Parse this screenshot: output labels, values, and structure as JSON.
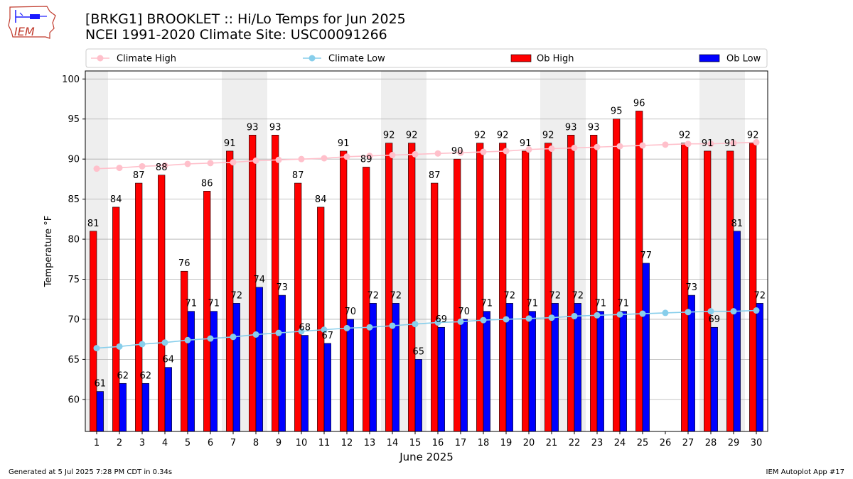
{
  "header": {
    "title_line1": "[BRKG1] BROOKLET :: Hi/Lo Temps for Jun 2025",
    "title_line2": "NCEI 1991-2020 Climate Site: USC00091266"
  },
  "logo": {
    "text": "IEM"
  },
  "footer": {
    "generated": "Generated at 5 Jul 2025 7:28 PM CDT in 0.34s",
    "app": "IEM Autoplot App #17"
  },
  "chart_data": {
    "type": "bar",
    "xlabel": "June 2025",
    "ylabel": "Temperature °F",
    "ylim": [
      56,
      101
    ],
    "yticks": [
      60,
      65,
      70,
      75,
      80,
      85,
      90,
      95,
      100
    ],
    "grid": true,
    "legend_position": "top",
    "categories": [
      1,
      2,
      3,
      4,
      5,
      6,
      7,
      8,
      9,
      10,
      11,
      12,
      13,
      14,
      15,
      16,
      17,
      18,
      19,
      20,
      21,
      22,
      23,
      24,
      25,
      26,
      27,
      28,
      29,
      30
    ],
    "weekend_shaded_days": [
      1,
      7,
      8,
      14,
      15,
      21,
      22,
      28,
      29
    ],
    "series": [
      {
        "name": "Climate High",
        "kind": "line",
        "color": "#ffc0cb",
        "values": [
          88.8,
          88.9,
          89.1,
          89.2,
          89.4,
          89.5,
          89.6,
          89.8,
          89.9,
          90.0,
          90.1,
          90.3,
          90.4,
          90.5,
          90.6,
          90.7,
          90.8,
          90.9,
          91.0,
          91.2,
          91.3,
          91.4,
          91.5,
          91.6,
          91.7,
          91.8,
          91.9,
          91.9,
          92.0,
          92.1
        ]
      },
      {
        "name": "Climate Low",
        "kind": "line",
        "color": "#87ceeb",
        "values": [
          66.4,
          66.6,
          66.9,
          67.1,
          67.4,
          67.6,
          67.8,
          68.1,
          68.3,
          68.5,
          68.7,
          68.9,
          69.0,
          69.2,
          69.4,
          69.6,
          69.7,
          69.9,
          70.0,
          70.1,
          70.2,
          70.4,
          70.5,
          70.6,
          70.7,
          70.8,
          70.9,
          71.0,
          71.0,
          71.1
        ]
      },
      {
        "name": "Ob High",
        "kind": "bar",
        "color": "#ff0000",
        "values": [
          81,
          84,
          87,
          88,
          76,
          86,
          91,
          93,
          93,
          87,
          84,
          91,
          89,
          92,
          92,
          87,
          90,
          92,
          92,
          91,
          92,
          93,
          93,
          95,
          96,
          null,
          92,
          91,
          91,
          92
        ]
      },
      {
        "name": "Ob Low",
        "kind": "bar",
        "color": "#0000ff",
        "values": [
          61,
          62,
          62,
          64,
          71,
          71,
          72,
          74,
          73,
          68,
          67,
          70,
          72,
          72,
          65,
          69,
          70,
          71,
          72,
          71,
          72,
          72,
          71,
          71,
          77,
          null,
          73,
          69,
          81,
          72
        ]
      }
    ]
  }
}
